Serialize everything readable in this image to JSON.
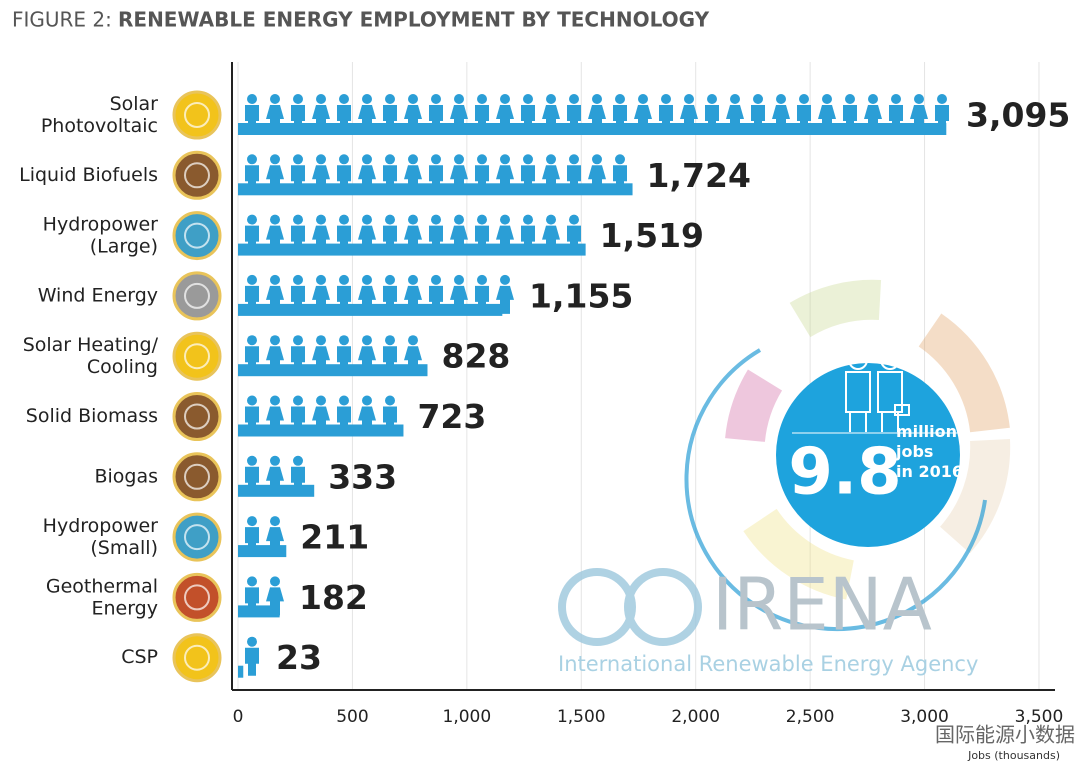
{
  "chart_data": {
    "type": "bar",
    "figure_label": "FIGURE 2:",
    "title": "RENEWABLE ENERGY EMPLOYMENT BY TECHNOLOGY",
    "categories": [
      "Solar\nPhotovoltaic",
      "Liquid Biofuels",
      "Hydropower\n(Large)",
      "Wind Energy",
      "Solar Heating/\nCooling",
      "Solid Biomass",
      "Biogas",
      "Hydropower\n(Small)",
      "Geothermal\nEnergy",
      "CSP"
    ],
    "values": [
      3095,
      1724,
      1519,
      1155,
      828,
      723,
      333,
      211,
      182,
      23
    ],
    "value_labels": [
      "3,095",
      "1,724",
      "1,519",
      "1,155",
      "828",
      "723",
      "333",
      "211",
      "182",
      "23"
    ],
    "color": "#2b9ed6",
    "icon_colors": [
      "#f2c31b",
      "#8a5a2e",
      "#3f9fc6",
      "#9a9a9a",
      "#f2c31b",
      "#8a5a2e",
      "#8a5a2e",
      "#3f9fc6",
      "#c2502a",
      "#f2c31b"
    ],
    "xlim": [
      0,
      3570
    ],
    "xticks": [
      0,
      500,
      {
        "value": 1000,
        "label": "1,000"
      },
      {
        "value": 1500,
        "label": "1,500"
      },
      {
        "value": 2000,
        "label": "2,000"
      },
      {
        "value": 2500,
        "label": "2,500"
      },
      {
        "value": 3000,
        "label": "3,000"
      },
      {
        "value": 3500,
        "label": "3,500"
      }
    ],
    "xlabel": "Jobs (thousands)",
    "grid": true,
    "badge": {
      "number": "9.8",
      "text": "million\njobs\nin 2016"
    },
    "logo": {
      "name": "IRENA",
      "subtitle": "International Renewable Energy Agency"
    },
    "watermark": "国际能源小数据"
  }
}
